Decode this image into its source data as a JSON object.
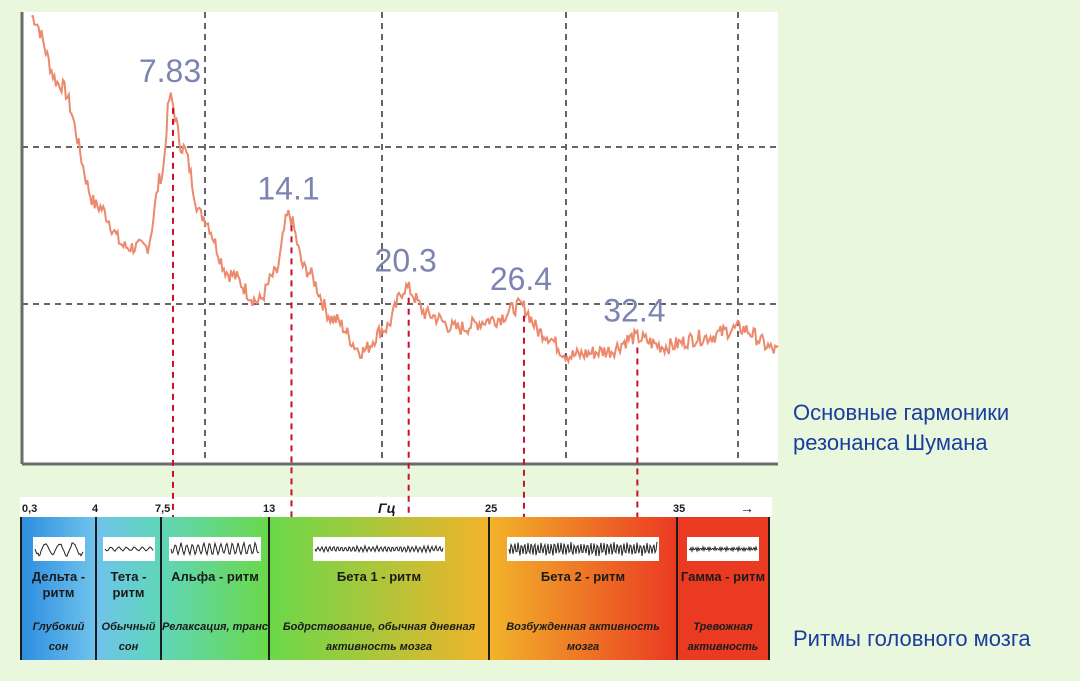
{
  "chart_data": [
    {
      "type": "line",
      "caption": "Основные гармоники резонанса Шумана",
      "peaks": [
        {
          "label": "7.83",
          "x": 7.83
        },
        {
          "label": "14.1",
          "x": 14.1
        },
        {
          "label": "20.3",
          "x": 20.3
        },
        {
          "label": "26.4",
          "x": 26.4
        },
        {
          "label": "32.4",
          "x": 32.4
        }
      ],
      "series": [
        {
          "values": [
            {
              "x": 0.5,
              "y": 0.99
            },
            {
              "x": 2,
              "y": 0.84
            },
            {
              "x": 4,
              "y": 0.57
            },
            {
              "x": 5.5,
              "y": 0.48
            },
            {
              "x": 6.6,
              "y": 0.48
            },
            {
              "x": 7.4,
              "y": 0.64
            },
            {
              "x": 7.83,
              "y": 0.81
            },
            {
              "x": 8.5,
              "y": 0.7
            },
            {
              "x": 9.5,
              "y": 0.55
            },
            {
              "x": 11,
              "y": 0.42
            },
            {
              "x": 12.5,
              "y": 0.36
            },
            {
              "x": 13.4,
              "y": 0.42
            },
            {
              "x": 14.1,
              "y": 0.55
            },
            {
              "x": 15,
              "y": 0.43
            },
            {
              "x": 16.5,
              "y": 0.32
            },
            {
              "x": 18,
              "y": 0.25
            },
            {
              "x": 19.2,
              "y": 0.3
            },
            {
              "x": 20.3,
              "y": 0.39
            },
            {
              "x": 21.5,
              "y": 0.33
            },
            {
              "x": 23,
              "y": 0.3
            },
            {
              "x": 25,
              "y": 0.32
            },
            {
              "x": 26.4,
              "y": 0.35
            },
            {
              "x": 27.5,
              "y": 0.29
            },
            {
              "x": 29,
              "y": 0.24
            },
            {
              "x": 31,
              "y": 0.25
            },
            {
              "x": 32.4,
              "y": 0.28
            },
            {
              "x": 34,
              "y": 0.26
            },
            {
              "x": 36,
              "y": 0.28
            },
            {
              "x": 38,
              "y": 0.3
            },
            {
              "x": 40,
              "y": 0.25
            }
          ]
        }
      ]
    },
    {
      "type": "table",
      "caption": "Ритмы головного мозга",
      "unit": "Гц",
      "ticks": [
        "0,3",
        "4",
        "7,5",
        "13",
        "25",
        "35"
      ],
      "bands": [
        {
          "title": "Дельта - ритм",
          "desc": "Глубокий сон",
          "from": 0.3,
          "to": 4,
          "color": "#2e8ee0"
        },
        {
          "title": "Тета - ритм",
          "desc": "Обычный сон",
          "from": 4,
          "to": 7.5,
          "color": "#6fc3ec"
        },
        {
          "title": "Альфа - ритм",
          "desc": "Релаксация, транс",
          "from": 7.5,
          "to": 13,
          "color": "#5fd6b8"
        },
        {
          "title": "Бета 1 - ритм",
          "desc": "Бодрствование, обычная дневная активность мозга",
          "from": 13,
          "to": 25,
          "color": "#6ad84a"
        },
        {
          "title": "Бета 2 - ритм",
          "desc": "Возбужденная активность мозга",
          "from": 25,
          "to": 35,
          "color": "#f2b32a"
        },
        {
          "title": "Гамма - ритм",
          "desc": "Тревожная активность",
          "from": 35,
          "to": 40,
          "color": "#ea3a22"
        }
      ]
    }
  ]
}
